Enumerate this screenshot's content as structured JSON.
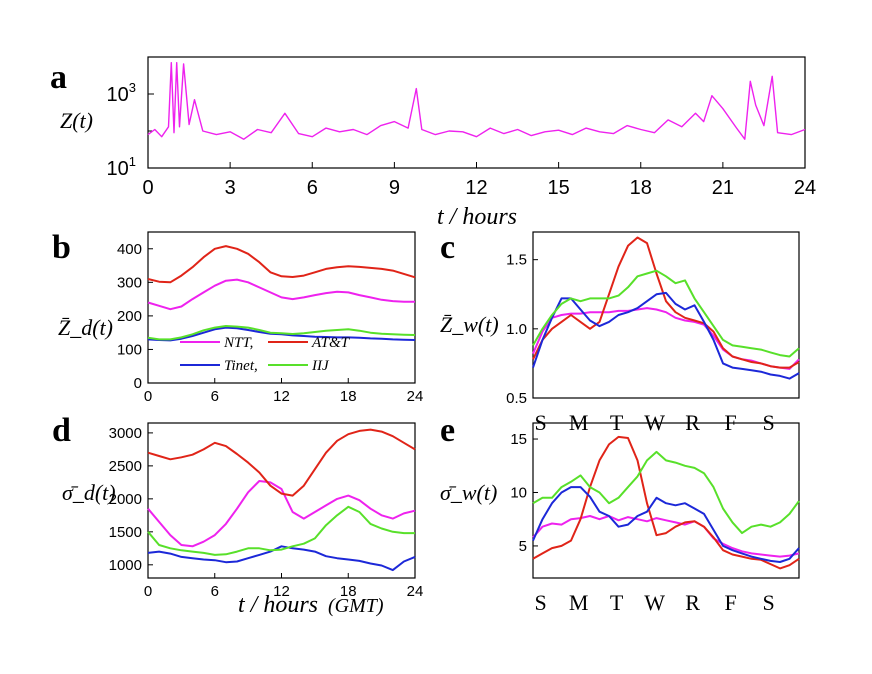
{
  "panels": {
    "a": {
      "letter": "a",
      "ylabel": "Z(t)",
      "xlabel": "t / hours"
    },
    "b": {
      "letter": "b",
      "ylabel": "Z̄_d(t)"
    },
    "c": {
      "letter": "c",
      "ylabel": "Z̄_w(t)"
    },
    "d": {
      "letter": "d",
      "ylabel": "σ̄_d(t)",
      "xlabel": "t / hours",
      "xlabel_unit": "(GMT)"
    },
    "e": {
      "letter": "e",
      "ylabel": "σ̄_w(t)"
    }
  },
  "legend": {
    "ntt": "NTT,",
    "att": "AT&T",
    "tinet": "Tinet,",
    "iij": "IIJ"
  },
  "colors": {
    "ntt": "#ee22ee",
    "att": "#e02418",
    "tinet": "#1c28d8",
    "iij": "#58e02a",
    "trace": "#ee22ee"
  },
  "chart_data": [
    {
      "id": "a",
      "type": "line",
      "title": "",
      "xlabel": "t / hours",
      "ylabel": "Z(t)",
      "xlim": [
        0,
        24
      ],
      "ylim": [
        10,
        10000
      ],
      "yscale": "log",
      "xticks": [
        0,
        3,
        6,
        9,
        12,
        15,
        18,
        21,
        24
      ],
      "yticks": [
        "10^1",
        "10^3"
      ],
      "series": [
        {
          "x": [
            0,
            0.25,
            0.5,
            0.75,
            0.85,
            0.95,
            1.05,
            1.15,
            1.3,
            1.5,
            1.7,
            2,
            2.5,
            3,
            3.5,
            4,
            4.5,
            5,
            5.5,
            6,
            6.5,
            7,
            7.5,
            8,
            8.5,
            9,
            9.5,
            9.8,
            10,
            10.5,
            11,
            11.5,
            12,
            12.5,
            13,
            13.5,
            14,
            14.5,
            15,
            15.5,
            16,
            16.5,
            17,
            17.5,
            18,
            18.5,
            19,
            19.5,
            20,
            20.3,
            20.6,
            21,
            21.5,
            21.8,
            22,
            22.2,
            22.5,
            22.8,
            23,
            23.5,
            24
          ],
          "values": [
            80,
            110,
            70,
            130,
            7000,
            90,
            7000,
            130,
            6500,
            150,
            700,
            100,
            80,
            95,
            60,
            110,
            90,
            300,
            85,
            70,
            120,
            95,
            110,
            80,
            140,
            180,
            120,
            1400,
            110,
            80,
            100,
            95,
            70,
            120,
            85,
            110,
            75,
            95,
            105,
            80,
            120,
            95,
            85,
            140,
            110,
            90,
            200,
            130,
            300,
            180,
            900,
            400,
            120,
            60,
            2200,
            500,
            140,
            3000,
            90,
            80,
            110
          ]
        }
      ]
    },
    {
      "id": "b",
      "type": "line",
      "title": "",
      "xlabel": "",
      "ylabel": "Z̄_d(t)",
      "xlim": [
        0,
        24
      ],
      "ylim": [
        0,
        450
      ],
      "xticks": [
        0,
        6,
        12,
        18,
        24
      ],
      "yticks": [
        0,
        100,
        200,
        300,
        400
      ],
      "x": [
        0,
        1,
        2,
        3,
        4,
        5,
        6,
        7,
        8,
        9,
        10,
        11,
        12,
        13,
        14,
        15,
        16,
        17,
        18,
        19,
        20,
        21,
        22,
        23,
        24
      ],
      "series": [
        {
          "name": "NTT",
          "values": [
            240,
            230,
            220,
            228,
            250,
            270,
            290,
            305,
            308,
            300,
            285,
            270,
            255,
            250,
            255,
            262,
            268,
            272,
            270,
            262,
            255,
            248,
            244,
            242,
            242
          ]
        },
        {
          "name": "AT&T",
          "values": [
            310,
            302,
            300,
            320,
            345,
            375,
            400,
            408,
            400,
            385,
            360,
            330,
            318,
            316,
            320,
            330,
            340,
            345,
            348,
            346,
            343,
            340,
            335,
            325,
            315
          ]
        },
        {
          "name": "Tinet",
          "values": [
            130,
            128,
            127,
            132,
            140,
            150,
            160,
            165,
            163,
            158,
            152,
            147,
            145,
            142,
            140,
            138,
            137,
            136,
            136,
            135,
            133,
            132,
            130,
            129,
            128
          ]
        },
        {
          "name": "IIJ",
          "values": [
            135,
            130,
            130,
            136,
            145,
            157,
            165,
            170,
            168,
            165,
            158,
            150,
            148,
            146,
            148,
            152,
            156,
            158,
            160,
            156,
            150,
            147,
            145,
            144,
            143
          ]
        }
      ]
    },
    {
      "id": "c",
      "type": "line",
      "title": "",
      "xlabel": "",
      "ylabel": "Z̄_w(t)",
      "xlim": [
        0,
        7
      ],
      "ylim": [
        0.5,
        1.7
      ],
      "xticks": [
        "S",
        "M",
        "T",
        "W",
        "R",
        "F",
        "S"
      ],
      "yticks": [
        0.5,
        1.0,
        1.5
      ],
      "x": [
        0,
        0.25,
        0.5,
        0.75,
        1,
        1.25,
        1.5,
        1.75,
        2,
        2.25,
        2.5,
        2.75,
        3,
        3.25,
        3.5,
        3.75,
        4,
        4.25,
        4.5,
        4.75,
        5,
        5.25,
        5.5,
        5.75,
        6,
        6.25,
        6.5,
        6.75,
        7
      ],
      "series": [
        {
          "name": "NTT",
          "values": [
            0.82,
            0.98,
            1.08,
            1.1,
            1.11,
            1.11,
            1.12,
            1.12,
            1.12,
            1.13,
            1.13,
            1.14,
            1.15,
            1.14,
            1.12,
            1.08,
            1.06,
            1.05,
            1.03,
            0.95,
            0.85,
            0.8,
            0.78,
            0.77,
            0.75,
            0.73,
            0.72,
            0.71,
            0.78
          ]
        },
        {
          "name": "AT&T",
          "values": [
            0.78,
            0.92,
            1.0,
            1.05,
            1.1,
            1.05,
            1.0,
            1.05,
            1.25,
            1.45,
            1.6,
            1.66,
            1.62,
            1.4,
            1.2,
            1.12,
            1.08,
            1.06,
            1.04,
            0.98,
            0.86,
            0.8,
            0.78,
            0.76,
            0.75,
            0.73,
            0.72,
            0.72,
            0.76
          ]
        },
        {
          "name": "Tinet",
          "values": [
            0.72,
            0.92,
            1.08,
            1.22,
            1.22,
            1.14,
            1.06,
            1.02,
            1.05,
            1.1,
            1.12,
            1.15,
            1.2,
            1.25,
            1.26,
            1.18,
            1.14,
            1.17,
            1.05,
            0.92,
            0.75,
            0.72,
            0.71,
            0.7,
            0.69,
            0.67,
            0.66,
            0.64,
            0.68
          ]
        },
        {
          "name": "IIJ",
          "values": [
            0.88,
            1.0,
            1.1,
            1.18,
            1.22,
            1.2,
            1.22,
            1.22,
            1.22,
            1.24,
            1.3,
            1.38,
            1.4,
            1.42,
            1.38,
            1.33,
            1.35,
            1.22,
            1.12,
            1.02,
            0.92,
            0.88,
            0.87,
            0.86,
            0.85,
            0.83,
            0.81,
            0.8,
            0.86
          ]
        }
      ]
    },
    {
      "id": "d",
      "type": "line",
      "title": "",
      "xlabel": "t / hours (GMT)",
      "ylabel": "σ̄_d(t)",
      "xlim": [
        0,
        24
      ],
      "ylim": [
        800,
        3150
      ],
      "xticks": [
        0,
        6,
        12,
        18,
        24
      ],
      "yticks": [
        1000,
        1500,
        2000,
        2500,
        3000
      ],
      "x": [
        0,
        1,
        2,
        3,
        4,
        5,
        6,
        7,
        8,
        9,
        10,
        11,
        12,
        13,
        14,
        15,
        16,
        17,
        18,
        19,
        20,
        21,
        22,
        23,
        24
      ],
      "series": [
        {
          "name": "NTT",
          "values": [
            1850,
            1650,
            1450,
            1300,
            1280,
            1350,
            1450,
            1620,
            1850,
            2100,
            2270,
            2250,
            2150,
            1800,
            1700,
            1800,
            1900,
            2000,
            2050,
            1980,
            1850,
            1750,
            1700,
            1780,
            1820
          ]
        },
        {
          "name": "AT&T",
          "values": [
            2700,
            2650,
            2600,
            2630,
            2670,
            2750,
            2850,
            2800,
            2680,
            2550,
            2400,
            2200,
            2080,
            2050,
            2200,
            2450,
            2700,
            2880,
            2980,
            3030,
            3050,
            3020,
            2950,
            2850,
            2750
          ]
        },
        {
          "name": "Tinet",
          "values": [
            1180,
            1200,
            1170,
            1120,
            1100,
            1080,
            1070,
            1040,
            1050,
            1100,
            1150,
            1200,
            1280,
            1250,
            1230,
            1200,
            1130,
            1100,
            1080,
            1060,
            1020,
            990,
            920,
            1050,
            1120
          ]
        },
        {
          "name": "IIJ",
          "values": [
            1500,
            1300,
            1250,
            1220,
            1200,
            1180,
            1150,
            1160,
            1200,
            1250,
            1250,
            1220,
            1230,
            1280,
            1320,
            1400,
            1600,
            1750,
            1880,
            1800,
            1620,
            1550,
            1500,
            1480,
            1480
          ]
        }
      ]
    },
    {
      "id": "e",
      "type": "line",
      "title": "",
      "xlabel": "",
      "ylabel": "σ̄_w(t)",
      "xlim": [
        0,
        7
      ],
      "ylim": [
        2,
        16.5
      ],
      "xticks": [
        "S",
        "M",
        "T",
        "W",
        "R",
        "F",
        "S"
      ],
      "yticks": [
        5,
        10,
        15
      ],
      "x": [
        0,
        0.25,
        0.5,
        0.75,
        1,
        1.25,
        1.5,
        1.75,
        2,
        2.25,
        2.5,
        2.75,
        3,
        3.25,
        3.5,
        3.75,
        4,
        4.25,
        4.5,
        4.75,
        5,
        5.25,
        5.5,
        5.75,
        6,
        6.25,
        6.5,
        6.75,
        7
      ],
      "series": [
        {
          "name": "NTT",
          "values": [
            5.8,
            6.8,
            7.1,
            7.0,
            7.5,
            7.6,
            7.8,
            7.5,
            7.8,
            7.4,
            7.7,
            7.5,
            7.3,
            7.6,
            7.4,
            7.2,
            7.0,
            7.3,
            6.8,
            5.7,
            5.2,
            4.8,
            4.5,
            4.3,
            4.2,
            4.1,
            4.0,
            4.1,
            4.3
          ]
        },
        {
          "name": "AT&T",
          "values": [
            3.8,
            4.3,
            4.8,
            5.0,
            5.5,
            7.5,
            10.5,
            13.0,
            14.5,
            15.2,
            15.1,
            13.0,
            9.0,
            6.0,
            6.2,
            6.8,
            7.2,
            7.3,
            6.8,
            5.8,
            4.6,
            4.2,
            4.0,
            3.8,
            3.7,
            3.3,
            2.9,
            3.2,
            3.8
          ]
        },
        {
          "name": "Tinet",
          "values": [
            5.5,
            7.5,
            9.0,
            10.0,
            10.5,
            10.5,
            9.6,
            8.2,
            7.8,
            6.8,
            7.0,
            7.8,
            8.2,
            9.5,
            9.0,
            8.8,
            9.0,
            8.5,
            8.0,
            6.5,
            5.0,
            4.6,
            4.3,
            4.0,
            3.8,
            3.6,
            3.5,
            3.8,
            4.8
          ]
        },
        {
          "name": "IIJ",
          "values": [
            9.0,
            9.5,
            9.5,
            10.5,
            11.0,
            11.6,
            10.5,
            10.0,
            9.0,
            9.5,
            10.5,
            11.5,
            13.0,
            13.8,
            13.0,
            12.8,
            12.5,
            12.3,
            11.8,
            10.5,
            8.5,
            7.2,
            6.2,
            6.8,
            7.0,
            6.8,
            7.2,
            8.0,
            9.2
          ]
        }
      ]
    }
  ]
}
